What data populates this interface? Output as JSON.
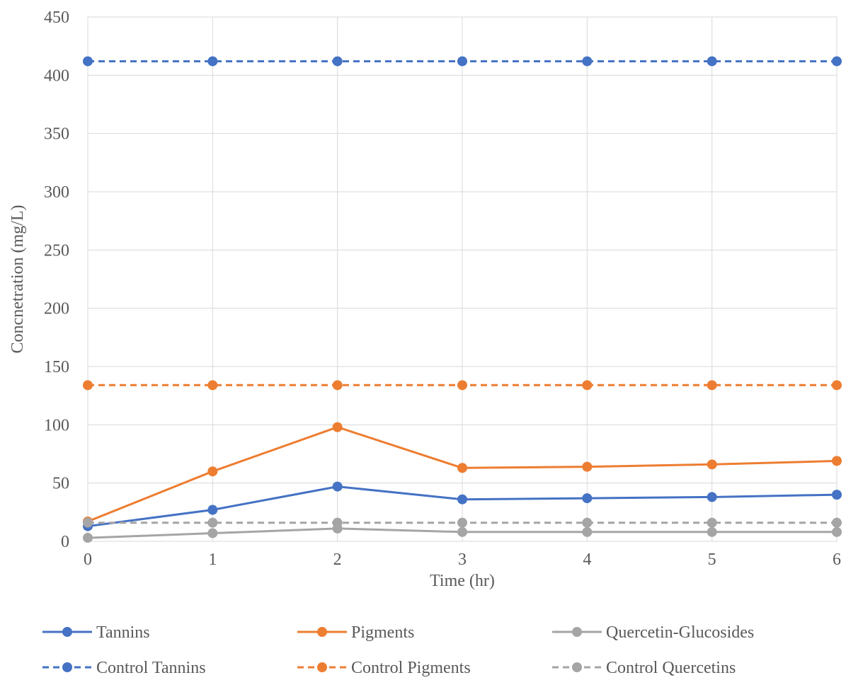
{
  "chart_data": {
    "type": "line",
    "title": "",
    "xlabel": "Time (hr)",
    "ylabel": "Concnetration (mg/L)",
    "x": [
      0,
      1,
      2,
      3,
      4,
      5,
      6
    ],
    "xlim": [
      0,
      6
    ],
    "ylim": [
      0,
      450
    ],
    "yticks": [
      0,
      50,
      100,
      150,
      200,
      250,
      300,
      350,
      400,
      450
    ],
    "grid": "horizontal",
    "legend": "bottom",
    "series": [
      {
        "name": "Tannins",
        "color": "#4472C4",
        "dash": false,
        "values": [
          13,
          27,
          47,
          36,
          37,
          38,
          40
        ]
      },
      {
        "name": "Pigments",
        "color": "#ED7D31",
        "dash": false,
        "values": [
          17,
          60,
          98,
          63,
          64,
          66,
          69
        ]
      },
      {
        "name": "Quercetin-Glucosides",
        "color": "#A5A5A5",
        "dash": false,
        "values": [
          3,
          7,
          11,
          8,
          8,
          8,
          8
        ]
      },
      {
        "name": "Control Tannins",
        "color": "#4472C4",
        "dash": true,
        "values": [
          412,
          412,
          412,
          412,
          412,
          412,
          412
        ]
      },
      {
        "name": "Control Pigments",
        "color": "#ED7D31",
        "dash": true,
        "values": [
          134,
          134,
          134,
          134,
          134,
          134,
          134
        ]
      },
      {
        "name": "Control Quercetins",
        "color": "#A5A5A5",
        "dash": true,
        "values": [
          16,
          16,
          16,
          16,
          16,
          16,
          16
        ]
      }
    ]
  }
}
